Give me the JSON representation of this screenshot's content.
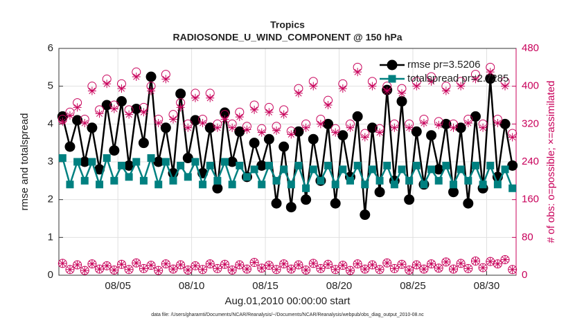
{
  "chart_data": {
    "type": "line",
    "title": "Tropics",
    "subtitle": "RADIOSONDE_U_WIND_COMPONENT @ 150 hPa",
    "xlabel": "Aug.01,2010 00:00:00 start",
    "ylabel": "rmse and totalspread",
    "y2label": "# of obs: o=possible; ×=assimilated",
    "footnote": "data file: /Users/gharamti/Documents/NCAR/Reanalysis/~/Documents/NCAR/Reanalysis/webpub/obs_diag_output_2010-08.nc",
    "xlim": [
      0,
      31
    ],
    "xticks": [
      {
        "value": 4,
        "label": "08/05"
      },
      {
        "value": 9,
        "label": "08/10"
      },
      {
        "value": 14,
        "label": "08/15"
      },
      {
        "value": 19,
        "label": "08/20"
      },
      {
        "value": 24,
        "label": "08/25"
      },
      {
        "value": 29,
        "label": "08/30"
      }
    ],
    "ylim": [
      0,
      6
    ],
    "yticks": [
      0,
      1,
      2,
      3,
      4,
      5,
      6
    ],
    "y2lim": [
      0,
      480
    ],
    "y2ticks": [
      0,
      80,
      160,
      240,
      320,
      400,
      480
    ],
    "y2color": "#c8005a",
    "grid": true,
    "legend": "upper right",
    "x": [
      0.25,
      0.75,
      1.25,
      1.75,
      2.25,
      2.75,
      3.25,
      3.75,
      4.25,
      4.75,
      5.25,
      5.75,
      6.25,
      6.75,
      7.25,
      7.75,
      8.25,
      8.75,
      9.25,
      9.75,
      10.25,
      10.75,
      11.25,
      11.75,
      12.25,
      12.75,
      13.25,
      13.75,
      14.25,
      14.75,
      15.25,
      15.75,
      16.25,
      16.75,
      17.25,
      17.75,
      18.25,
      18.75,
      19.25,
      19.75,
      20.25,
      20.75,
      21.25,
      21.75,
      22.25,
      22.75,
      23.25,
      23.75,
      24.25,
      24.75,
      25.25,
      25.75,
      26.25,
      26.75,
      27.25,
      27.75,
      28.25,
      28.75,
      29.25,
      29.75,
      30.25,
      30.75
    ],
    "series": [
      {
        "name": "rmse pr=3.5206",
        "color": "#000000",
        "marker": "circle",
        "line": true,
        "values": [
          4.2,
          3.4,
          4.1,
          3.0,
          3.9,
          2.8,
          4.5,
          3.3,
          4.6,
          2.9,
          4.4,
          3.5,
          5.25,
          3.0,
          3.9,
          2.7,
          4.8,
          3.1,
          4.1,
          2.7,
          3.9,
          2.3,
          4.3,
          3.0,
          3.8,
          2.6,
          3.5,
          2.9,
          3.6,
          1.9,
          3.4,
          1.8,
          3.8,
          2.0,
          3.6,
          2.5,
          4.0,
          1.9,
          3.7,
          2.6,
          4.2,
          1.6,
          3.9,
          2.2,
          4.9,
          2.5,
          4.6,
          2.0,
          3.8,
          2.4,
          3.7,
          2.8,
          4.0,
          2.2,
          3.9,
          1.9,
          4.2,
          2.3,
          5.2,
          2.6,
          4.0,
          2.9
        ]
      },
      {
        "name": "totalspread pr=2.7285",
        "color": "#008080",
        "marker": "square",
        "line": true,
        "values": [
          3.1,
          2.4,
          3.0,
          2.5,
          3.0,
          2.4,
          3.1,
          2.5,
          2.9,
          2.6,
          3.0,
          2.5,
          3.1,
          2.4,
          3.0,
          2.5,
          2.9,
          2.6,
          3.0,
          2.4,
          2.9,
          2.5,
          3.0,
          2.4,
          2.9,
          2.6,
          2.8,
          2.4,
          2.9,
          2.5,
          2.8,
          2.4,
          2.9,
          2.3,
          2.8,
          2.5,
          2.9,
          2.4,
          2.8,
          2.5,
          2.9,
          2.4,
          2.8,
          2.5,
          2.9,
          2.4,
          2.8,
          2.5,
          2.9,
          2.4,
          2.8,
          2.5,
          2.9,
          2.4,
          2.8,
          2.5,
          2.9,
          2.4,
          2.9,
          2.4,
          2.8,
          2.3
        ]
      },
      {
        "color": "#c8005a",
        "marker": "circle-open",
        "line": false,
        "axis": "y2",
        "values": [
          330,
          345,
          365,
          330,
          400,
          350,
          415,
          360,
          405,
          350,
          430,
          355,
          400,
          330,
          425,
          340,
          365,
          320,
          385,
          330,
          385,
          320,
          340,
          320,
          345,
          315,
          360,
          310,
          355,
          315,
          350,
          305,
          395,
          320,
          410,
          330,
          370,
          310,
          405,
          320,
          440,
          300,
          410,
          310,
          400,
          320,
          395,
          320,
          410,
          330,
          420,
          325,
          400,
          320,
          410,
          330,
          425,
          320,
          440,
          330,
          410,
          300
        ]
      },
      {
        "color": "#c8005a",
        "marker": "asterisk",
        "line": false,
        "axis": "y2",
        "values": [
          325,
          338,
          355,
          322,
          390,
          342,
          405,
          352,
          395,
          340,
          420,
          345,
          390,
          322,
          415,
          330,
          355,
          312,
          375,
          322,
          375,
          312,
          330,
          312,
          335,
          308,
          350,
          302,
          345,
          306,
          340,
          298,
          385,
          312,
          400,
          320,
          360,
          302,
          395,
          312,
          430,
          292,
          400,
          302,
          390,
          312,
          385,
          312,
          400,
          322,
          410,
          318,
          390,
          312,
          400,
          322,
          415,
          312,
          430,
          322,
          400,
          292
        ]
      },
      {
        "color": "#c8005a",
        "marker": "circle-open",
        "line": false,
        "axis": "y2",
        "values": [
          25,
          12,
          22,
          10,
          24,
          13,
          20,
          11,
          23,
          12,
          26,
          14,
          21,
          10,
          24,
          13,
          22,
          11,
          20,
          12,
          24,
          14,
          23,
          11,
          22,
          13,
          27,
          15,
          21,
          12,
          24,
          13,
          22,
          11,
          25,
          14,
          23,
          12,
          21,
          10,
          24,
          13,
          22,
          12,
          26,
          14,
          23,
          11,
          22,
          13,
          24,
          15,
          28,
          13,
          25,
          14,
          30,
          16,
          29,
          24,
          33,
          12
        ]
      },
      {
        "color": "#c8005a",
        "marker": "asterisk",
        "line": false,
        "axis": "y2",
        "values": [
          25,
          12,
          22,
          10,
          24,
          13,
          20,
          11,
          23,
          12,
          26,
          14,
          21,
          10,
          24,
          13,
          22,
          11,
          20,
          12,
          24,
          14,
          23,
          11,
          22,
          13,
          27,
          15,
          21,
          12,
          24,
          13,
          22,
          11,
          25,
          14,
          23,
          12,
          21,
          10,
          24,
          13,
          22,
          12,
          26,
          14,
          23,
          11,
          22,
          13,
          24,
          15,
          28,
          13,
          25,
          14,
          30,
          16,
          29,
          24,
          33,
          12
        ]
      }
    ]
  }
}
